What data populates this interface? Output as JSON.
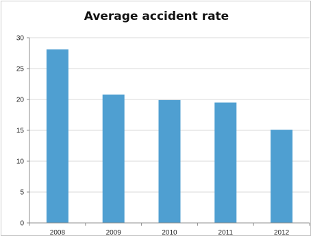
{
  "chart_data": {
    "type": "bar",
    "title": "Average accident rate",
    "categories": [
      "2008",
      "2009",
      "2010",
      "2011",
      "2012"
    ],
    "values": [
      28.1,
      20.8,
      19.9,
      19.5,
      15.1
    ],
    "ylim": [
      0,
      30
    ],
    "yticks": [
      0,
      5,
      10,
      15,
      20,
      25,
      30
    ],
    "grid": true,
    "legend": "none",
    "colors": {
      "bar": "#4f9fd1",
      "grid": "#d9d9d9",
      "axis": "#8c8c8c"
    }
  }
}
